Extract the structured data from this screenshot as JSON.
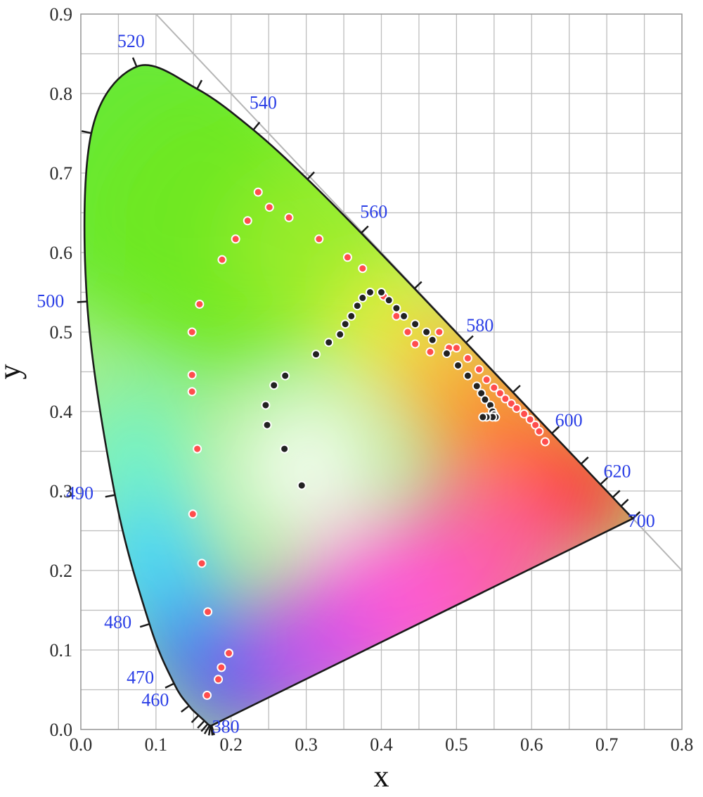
{
  "chart_data": {
    "type": "scatter",
    "title": "",
    "xlabel": "x",
    "ylabel": "y",
    "xlim": [
      0.0,
      0.8
    ],
    "ylim": [
      0.0,
      0.9
    ],
    "x_ticks": [
      0.0,
      0.1,
      0.2,
      0.3,
      0.4,
      0.5,
      0.6,
      0.7,
      0.8
    ],
    "y_ticks": [
      0.0,
      0.1,
      0.2,
      0.3,
      0.4,
      0.5,
      0.6,
      0.7,
      0.8,
      0.9
    ],
    "x_tick_labels": [
      "0.0",
      "0.1",
      "0.2",
      "0.3",
      "0.4",
      "0.5",
      "0.6",
      "0.7",
      "0.8"
    ],
    "y_tick_labels": [
      "0.0",
      "0.1",
      "0.2",
      "0.3",
      "0.4",
      "0.5",
      "0.6",
      "0.7",
      "0.8",
      "0.9"
    ],
    "grid": true,
    "spectral_locus": [
      [
        0.1741,
        0.005
      ],
      [
        0.1733,
        0.0048
      ],
      [
        0.1726,
        0.0048
      ],
      [
        0.1714,
        0.0051
      ],
      [
        0.1689,
        0.0069
      ],
      [
        0.1644,
        0.0109
      ],
      [
        0.1566,
        0.0177
      ],
      [
        0.144,
        0.0297
      ],
      [
        0.1241,
        0.0578
      ],
      [
        0.0913,
        0.1327
      ],
      [
        0.0454,
        0.295
      ],
      [
        0.0082,
        0.5384
      ],
      [
        0.0139,
        0.7502
      ],
      [
        0.0743,
        0.8338
      ],
      [
        0.1547,
        0.8059
      ],
      [
        0.2296,
        0.7543
      ],
      [
        0.3016,
        0.6923
      ],
      [
        0.3731,
        0.6245
      ],
      [
        0.4441,
        0.5547
      ],
      [
        0.5125,
        0.4866
      ],
      [
        0.5752,
        0.4242
      ],
      [
        0.627,
        0.3725
      ],
      [
        0.6658,
        0.334
      ],
      [
        0.6915,
        0.3083
      ],
      [
        0.7079,
        0.292
      ],
      [
        0.719,
        0.2809
      ],
      [
        0.7347,
        0.2653
      ]
    ],
    "wavelength_labels": [
      {
        "text": "380",
        "x": 0.1741,
        "y": 0.005
      },
      {
        "text": "460",
        "x": 0.144,
        "y": 0.0297
      },
      {
        "text": "470",
        "x": 0.1241,
        "y": 0.0578
      },
      {
        "text": "480",
        "x": 0.0913,
        "y": 0.1327
      },
      {
        "text": "490",
        "x": 0.0454,
        "y": 0.295
      },
      {
        "text": "500",
        "x": 0.0082,
        "y": 0.5384
      },
      {
        "text": "520",
        "x": 0.0743,
        "y": 0.8338
      },
      {
        "text": "540",
        "x": 0.2296,
        "y": 0.7543
      },
      {
        "text": "560",
        "x": 0.3731,
        "y": 0.6245
      },
      {
        "text": "580",
        "x": 0.5125,
        "y": 0.4866
      },
      {
        "text": "600",
        "x": 0.627,
        "y": 0.3725
      },
      {
        "text": "620",
        "x": 0.6915,
        "y": 0.3083
      },
      {
        "text": "700",
        "x": 0.7347,
        "y": 0.2653
      }
    ],
    "series": [
      {
        "color": "#ff4d4d",
        "points": [
          [
            0.168,
            0.043
          ],
          [
            0.183,
            0.063
          ],
          [
            0.187,
            0.078
          ],
          [
            0.197,
            0.096
          ],
          [
            0.169,
            0.148
          ],
          [
            0.161,
            0.209
          ],
          [
            0.149,
            0.271
          ],
          [
            0.155,
            0.353
          ],
          [
            0.148,
            0.425
          ],
          [
            0.148,
            0.446
          ],
          [
            0.148,
            0.5
          ],
          [
            0.158,
            0.535
          ],
          [
            0.188,
            0.591
          ],
          [
            0.206,
            0.617
          ],
          [
            0.222,
            0.64
          ],
          [
            0.236,
            0.676
          ],
          [
            0.251,
            0.657
          ],
          [
            0.277,
            0.644
          ],
          [
            0.317,
            0.617
          ],
          [
            0.355,
            0.594
          ],
          [
            0.375,
            0.58
          ],
          [
            0.403,
            0.545
          ],
          [
            0.42,
            0.52
          ],
          [
            0.435,
            0.5
          ],
          [
            0.445,
            0.485
          ],
          [
            0.465,
            0.475
          ],
          [
            0.477,
            0.5
          ],
          [
            0.49,
            0.48
          ],
          [
            0.5,
            0.48
          ],
          [
            0.515,
            0.467
          ],
          [
            0.53,
            0.453
          ],
          [
            0.54,
            0.44
          ],
          [
            0.55,
            0.43
          ],
          [
            0.558,
            0.423
          ],
          [
            0.565,
            0.416
          ],
          [
            0.573,
            0.41
          ],
          [
            0.58,
            0.404
          ],
          [
            0.59,
            0.397
          ],
          [
            0.598,
            0.39
          ],
          [
            0.605,
            0.383
          ],
          [
            0.61,
            0.375
          ],
          [
            0.618,
            0.362
          ]
        ]
      },
      {
        "color": "#222222",
        "points": [
          [
            0.294,
            0.307
          ],
          [
            0.271,
            0.353
          ],
          [
            0.248,
            0.383
          ],
          [
            0.246,
            0.408
          ],
          [
            0.257,
            0.433
          ],
          [
            0.272,
            0.445
          ],
          [
            0.313,
            0.472
          ],
          [
            0.33,
            0.487
          ],
          [
            0.345,
            0.497
          ],
          [
            0.352,
            0.51
          ],
          [
            0.36,
            0.52
          ],
          [
            0.368,
            0.533
          ],
          [
            0.375,
            0.543
          ],
          [
            0.385,
            0.55
          ],
          [
            0.4,
            0.55
          ],
          [
            0.41,
            0.54
          ],
          [
            0.42,
            0.53
          ],
          [
            0.43,
            0.52
          ],
          [
            0.445,
            0.51
          ],
          [
            0.46,
            0.5
          ],
          [
            0.468,
            0.49
          ],
          [
            0.487,
            0.473
          ],
          [
            0.502,
            0.458
          ],
          [
            0.515,
            0.445
          ],
          [
            0.527,
            0.432
          ],
          [
            0.533,
            0.423
          ],
          [
            0.538,
            0.415
          ],
          [
            0.545,
            0.408
          ],
          [
            0.548,
            0.4
          ],
          [
            0.55,
            0.396
          ],
          [
            0.552,
            0.393
          ],
          [
            0.548,
            0.393
          ],
          [
            0.54,
            0.393
          ],
          [
            0.535,
            0.393
          ]
        ]
      }
    ]
  }
}
